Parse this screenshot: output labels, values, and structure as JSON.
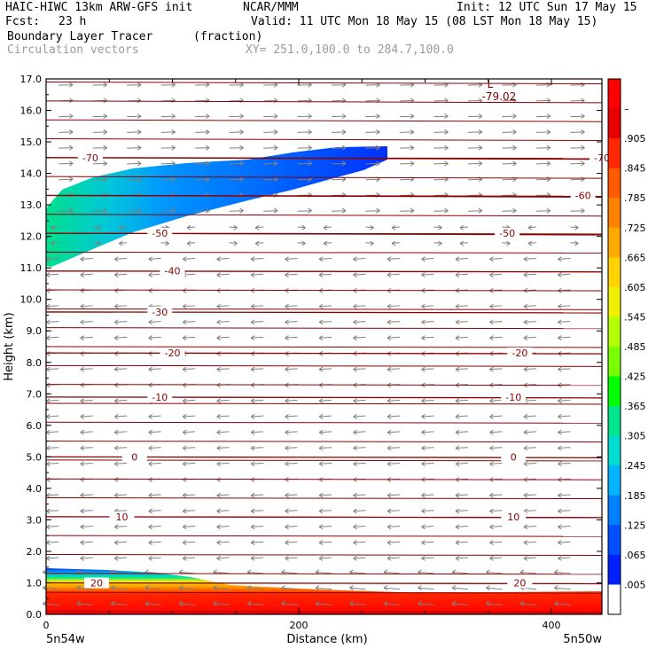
{
  "header": {
    "model": "HAIC-HIWC 13km ARW-GFS init",
    "org": "NCAR/MMM",
    "init": "Init: 12 UTC Sun 17 May 15",
    "fcst_label": "Fcst:",
    "fcst_value": "23 h",
    "valid": "Valid: 11 UTC Mon 18 May 15 (08 LST Mon 18 May 15)",
    "field": "Boundary Layer Tracer",
    "units": "(fraction)",
    "vectors": "Circulation vectors",
    "xy": "XY= 251.0,100.0 to 284.7,100.0"
  },
  "chart_data": {
    "type": "heatmap",
    "xlabel": "Distance (km)",
    "ylabel": "Height (km)",
    "xlim": [
      0,
      440
    ],
    "ylim": [
      0,
      17
    ],
    "x_ticks": [
      0,
      200,
      400
    ],
    "y_ticks": [
      "0.0",
      "1.0",
      "2.0",
      "3.0",
      "4.0",
      "5.0",
      "6.0",
      "7.0",
      "8.0",
      "9.0",
      "10.0",
      "11.0",
      "12.0",
      "13.0",
      "14.0",
      "15.0",
      "16.0",
      "17.0"
    ],
    "left_endpoint": "5n54w",
    "right_endpoint": "5n50w",
    "colorbar_labels": [
      ".005",
      ".065",
      ".125",
      ".185",
      ".245",
      ".305",
      ".365",
      ".425",
      ".485",
      ".545",
      ".605",
      ".665",
      ".725",
      ".785",
      ".845",
      ".905",
      "–"
    ],
    "colorbar_colors": [
      "#ffffff",
      "#0020ff",
      "#0050ff",
      "#0080ff",
      "#00b4ff",
      "#00dcd2",
      "#00e68c",
      "#00ff00",
      "#78ff00",
      "#b4ff00",
      "#f0f000",
      "#ffd200",
      "#ffaa00",
      "#ff8200",
      "#ff5a00",
      "#ff2800",
      "#e60000",
      "#ff0000"
    ],
    "temperature_contours": [
      {
        "label": "-70",
        "height": 14.5,
        "label_x": [
          35,
          440
        ]
      },
      {
        "label": "-60",
        "height": 13.3,
        "label_x": [
          425
        ]
      },
      {
        "label": "-50",
        "height": 12.1,
        "label_x": [
          90,
          365
        ]
      },
      {
        "label": "-40",
        "height": 10.9,
        "label_x": [
          100
        ]
      },
      {
        "label": "-30",
        "height": 9.6,
        "label_x": [
          90
        ]
      },
      {
        "label": "-20",
        "height": 8.3,
        "label_x": [
          100,
          375
        ]
      },
      {
        "label": "-10",
        "height": 6.9,
        "label_x": [
          90,
          370
        ]
      },
      {
        "label": "0",
        "height": 5.0,
        "label_x": [
          70,
          370
        ]
      },
      {
        "label": "10",
        "height": 3.1,
        "label_x": [
          60,
          370
        ]
      },
      {
        "label": "20",
        "height": 1.0,
        "label_x": [
          40,
          375
        ]
      }
    ],
    "min_label": "-79.02",
    "min_marker": "L",
    "min_x": 352,
    "min_y": 16.6
  }
}
